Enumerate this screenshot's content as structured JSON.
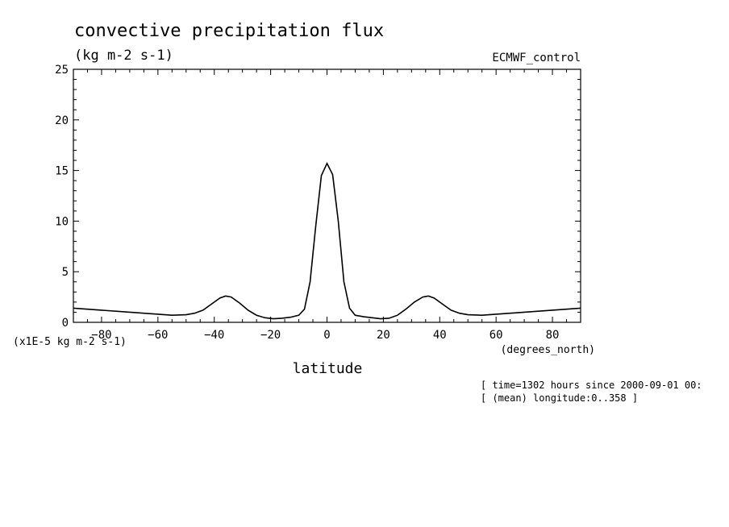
{
  "chart_data": {
    "type": "line",
    "title": "convective precipitation flux",
    "units": "(kg m-2 s-1)",
    "source_label": "ECMWF_control",
    "xlabel": "latitude",
    "xunits": "(degrees_north)",
    "yscale_label": "(x1E-5 kg m-2 s-1)",
    "xlim": [
      -90,
      90
    ],
    "ylim": [
      0,
      25
    ],
    "xticks": [
      -80,
      -60,
      -40,
      -20,
      0,
      20,
      40,
      60,
      80
    ],
    "yticks": [
      0,
      5,
      10,
      15,
      20,
      25
    ],
    "footnotes": [
      "[ time=1302 hours since 2000-09-01 00:",
      "[ (mean) longitude:0..358 ]"
    ],
    "series": [
      {
        "name": "convective precipitation flux",
        "x": [
          -90,
          -80,
          -70,
          -60,
          -55,
          -50,
          -47,
          -44,
          -41,
          -38,
          -36,
          -34,
          -31,
          -28,
          -25,
          -22,
          -19,
          -16,
          -13,
          -10,
          -8,
          -6,
          -4,
          -2,
          0,
          2,
          4,
          6,
          8,
          10,
          13,
          16,
          19,
          22,
          25,
          28,
          31,
          34,
          36,
          38,
          41,
          44,
          47,
          50,
          55,
          60,
          70,
          80,
          90
        ],
        "values": [
          1.4,
          1.2,
          1.0,
          0.8,
          0.7,
          0.75,
          0.9,
          1.2,
          1.8,
          2.4,
          2.6,
          2.5,
          1.9,
          1.2,
          0.7,
          0.45,
          0.35,
          0.4,
          0.5,
          0.7,
          1.3,
          4.0,
          9.5,
          14.5,
          15.7,
          14.6,
          10.0,
          4.0,
          1.4,
          0.7,
          0.55,
          0.45,
          0.35,
          0.4,
          0.7,
          1.3,
          2.0,
          2.5,
          2.6,
          2.4,
          1.8,
          1.2,
          0.9,
          0.75,
          0.7,
          0.8,
          1.0,
          1.2,
          1.4
        ]
      }
    ]
  }
}
